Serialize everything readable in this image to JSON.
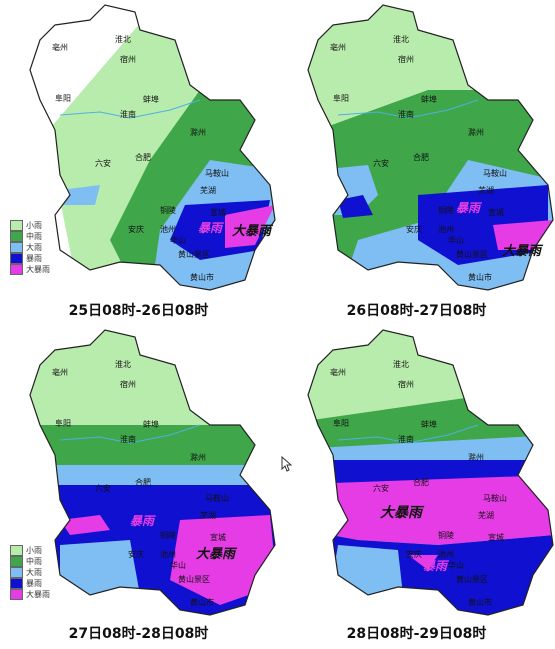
{
  "colors": {
    "none": "#ffffff",
    "light": "#b8ecac",
    "moderate": "#3fa64a",
    "heavy": "#7fbef2",
    "storm": "#1010d0",
    "heavy_storm": "#e63ce6"
  },
  "legend": {
    "items": [
      {
        "label": "小雨",
        "color": "#b8ecac"
      },
      {
        "label": "中雨",
        "color": "#3fa64a"
      },
      {
        "label": "大雨",
        "color": "#7fbef2"
      },
      {
        "label": "暴雨",
        "color": "#1010d0"
      },
      {
        "label": "大暴雨",
        "color": "#e63ce6"
      }
    ]
  },
  "cities": [
    "亳州",
    "淮北",
    "宿州",
    "蚌埠",
    "阜阳",
    "淮南",
    "滁州",
    "六安",
    "合肥",
    "马鞍山",
    "芜湖",
    "铜陵",
    "宣城",
    "安庆",
    "池州",
    "黄山",
    "黄山景区",
    "华山",
    "黄山市"
  ],
  "panels": [
    {
      "caption": "25日08时-26日08时",
      "overlay": [
        "暴雨",
        "大暴雨"
      ]
    },
    {
      "caption": "26日08时-27日08时",
      "overlay": [
        "暴雨",
        "大暴雨"
      ]
    },
    {
      "caption": "27日08时-28日08时",
      "overlay": [
        "暴雨",
        "大暴雨"
      ]
    },
    {
      "caption": "28日08时-29日08时",
      "overlay": [
        "大暴雨",
        "暴雨"
      ]
    }
  ]
}
